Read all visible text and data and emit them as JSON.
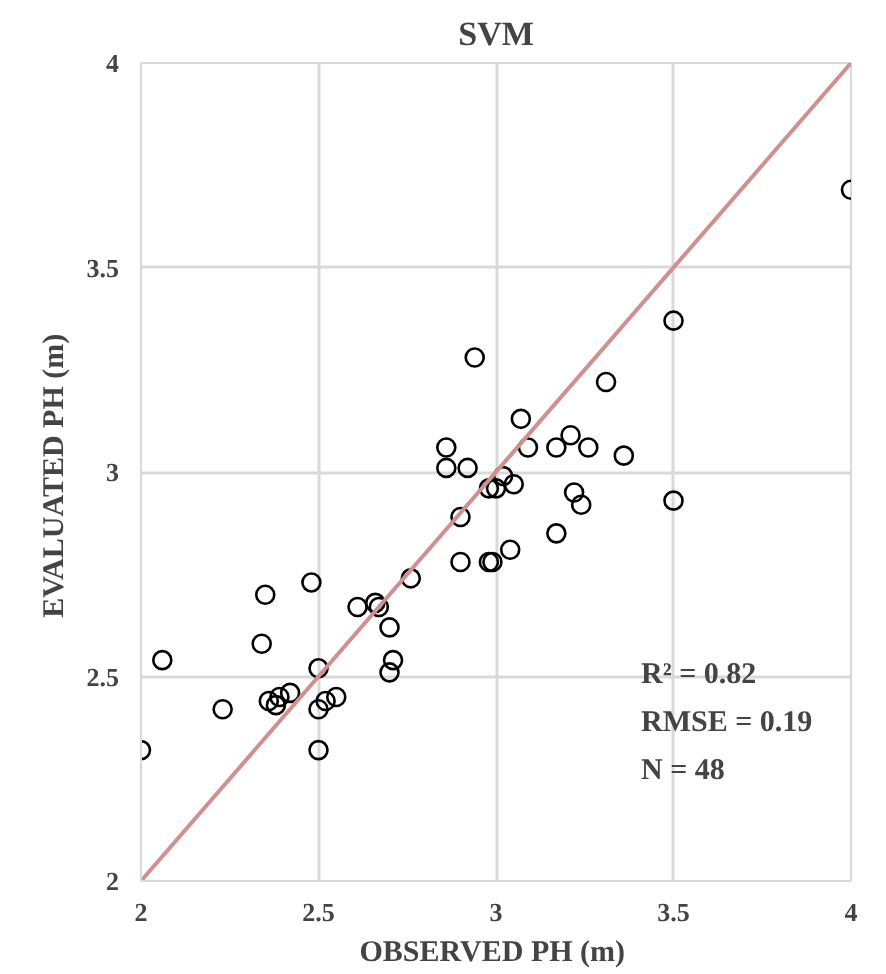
{
  "chart_data": {
    "type": "scatter",
    "title": "SVM",
    "xlabel": "OBSERVED PH  (m)",
    "ylabel": "EVALUATED PH  (m)",
    "xlim": [
      2,
      4
    ],
    "ylim": [
      2,
      4
    ],
    "xticks": [
      2,
      2.5,
      3,
      3.5,
      4
    ],
    "yticks": [
      2,
      2.5,
      3,
      3.5,
      4
    ],
    "grid": true,
    "marker": "circle",
    "series": [
      {
        "color": "#000000",
        "x": [
          2.0,
          2.06,
          2.23,
          2.34,
          2.35,
          2.36,
          2.38,
          2.39,
          2.42,
          2.48,
          2.5,
          2.5,
          2.5,
          2.52,
          2.55,
          2.61,
          2.66,
          2.67,
          2.7,
          2.7,
          2.71,
          2.76,
          2.86,
          2.86,
          2.9,
          2.9,
          2.92,
          2.94,
          2.98,
          2.99,
          2.98,
          3.0,
          3.02,
          3.04,
          3.05,
          3.07,
          3.09,
          3.17,
          3.17,
          3.21,
          3.22,
          3.24,
          3.26,
          3.31,
          3.36,
          3.5,
          3.5,
          4.0
        ],
        "values": [
          2.32,
          2.54,
          2.42,
          2.58,
          2.7,
          2.44,
          2.43,
          2.45,
          2.46,
          2.73,
          2.52,
          2.32,
          2.42,
          2.44,
          2.45,
          2.67,
          2.68,
          2.67,
          2.62,
          2.51,
          2.54,
          2.74,
          3.06,
          3.01,
          2.78,
          2.89,
          3.01,
          3.28,
          2.78,
          2.78,
          2.96,
          2.96,
          2.99,
          2.81,
          2.97,
          3.13,
          3.06,
          2.85,
          3.06,
          3.09,
          2.95,
          2.92,
          3.06,
          3.22,
          3.04,
          3.37,
          2.93,
          3.69
        ]
      },
      {
        "type": "line",
        "color": "#d09090",
        "x": [
          2,
          4
        ],
        "values": [
          2,
          4
        ],
        "marker": "none"
      }
    ],
    "annotations": [
      "R² = 0.82",
      "RMSE = 0.19",
      "N = 48"
    ]
  }
}
